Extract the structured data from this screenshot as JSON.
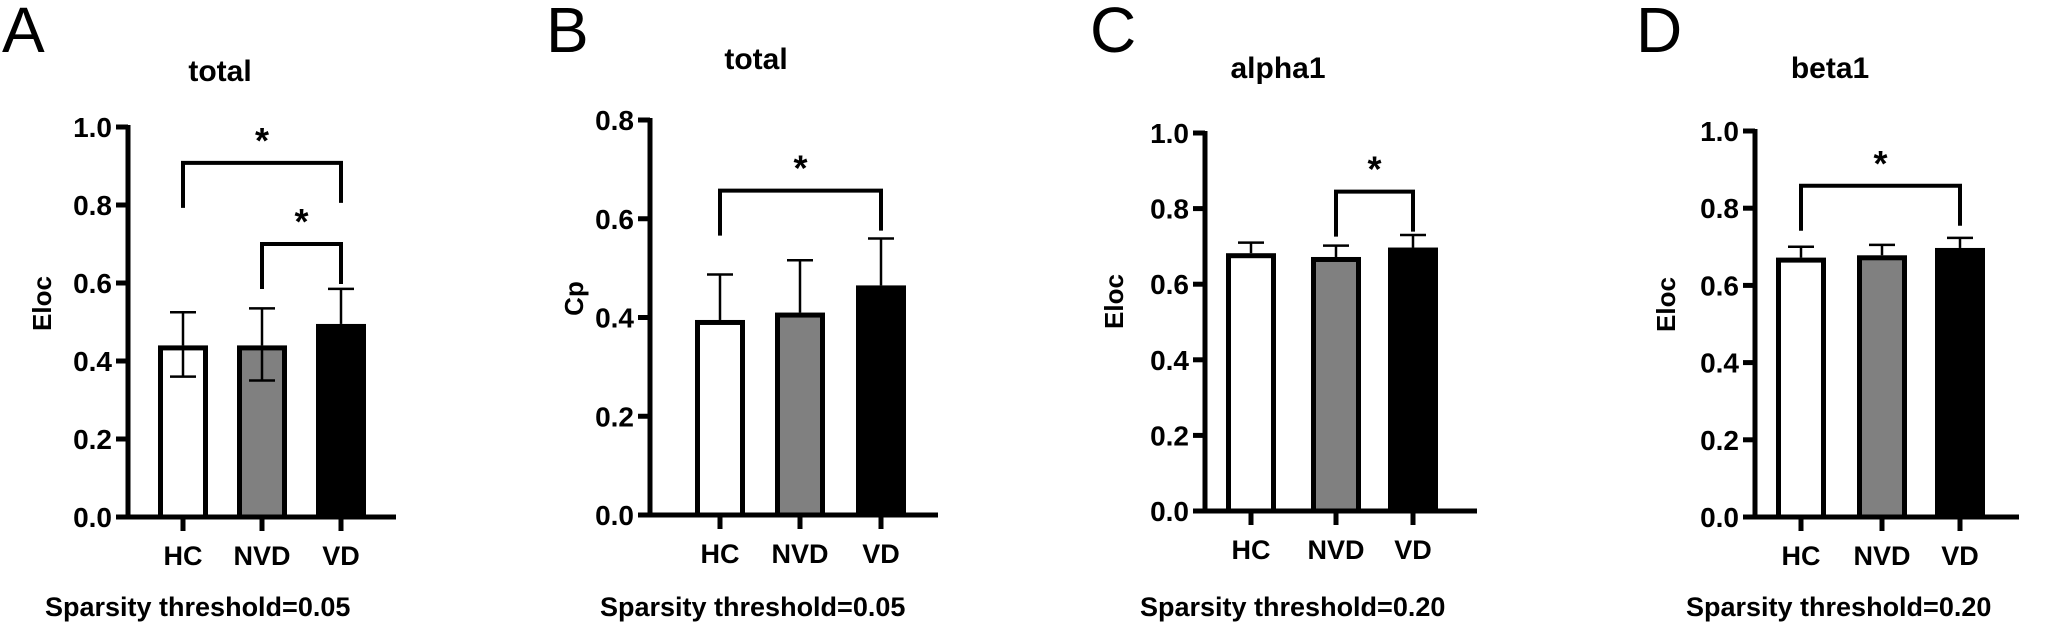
{
  "figure": {
    "panels": [
      {
        "letter": "A",
        "title": "total",
        "ylabel": "Eloc",
        "footer": "Sparsity threshold=0.05"
      },
      {
        "letter": "B",
        "title": "total",
        "ylabel": "Cp",
        "footer": "Sparsity threshold=0.05"
      },
      {
        "letter": "C",
        "title": "alpha1",
        "ylabel": "Eloc",
        "footer": "Sparsity threshold=0.20"
      },
      {
        "letter": "D",
        "title": "beta1",
        "ylabel": "Eloc",
        "footer": "Sparsity threshold=0.20"
      }
    ],
    "colors": {
      "HC": "#ffffff",
      "NVD": "#808080",
      "VD": "#000000",
      "outline": "#000000"
    }
  },
  "chart_data": [
    {
      "type": "bar",
      "panel": "A",
      "title": "total",
      "xlabel": "Sparsity threshold=0.05",
      "ylabel": "Eloc",
      "categories": [
        "HC",
        "NVD",
        "VD"
      ],
      "values": [
        0.44,
        0.44,
        0.495
      ],
      "error_lower": [
        0.36,
        0.35,
        null
      ],
      "error_upper": [
        0.525,
        0.535,
        0.585
      ],
      "ylim": [
        0,
        1.0
      ],
      "yticks": [
        "0.0",
        "0.2",
        "0.4",
        "0.6",
        "0.8",
        "1.0"
      ],
      "significance": [
        {
          "from": "HC",
          "to": "VD",
          "label": "*",
          "y": 0.908
        },
        {
          "from": "NVD",
          "to": "VD",
          "label": "*",
          "y": 0.7
        }
      ],
      "grid": false,
      "legend": null
    },
    {
      "type": "bar",
      "panel": "B",
      "title": "total",
      "xlabel": "Sparsity threshold=0.05",
      "ylabel": "Cp",
      "categories": [
        "HC",
        "NVD",
        "VD"
      ],
      "values": [
        0.395,
        0.41,
        0.465
      ],
      "error_lower": [
        null,
        null,
        null
      ],
      "error_upper": [
        0.487,
        0.516,
        0.56
      ],
      "ylim": [
        0,
        0.8
      ],
      "yticks": [
        "0.0",
        "0.2",
        "0.4",
        "0.6",
        "0.8"
      ],
      "significance": [
        {
          "from": "HC",
          "to": "VD",
          "label": "*",
          "y": 0.657
        }
      ],
      "grid": false,
      "legend": null
    },
    {
      "type": "bar",
      "panel": "C",
      "title": "alpha1",
      "xlabel": "Sparsity threshold=0.20",
      "ylabel": "Eloc",
      "categories": [
        "HC",
        "NVD",
        "VD"
      ],
      "values": [
        0.682,
        0.672,
        0.697
      ],
      "error_lower": [
        null,
        null,
        null
      ],
      "error_upper": [
        0.71,
        0.702,
        0.73
      ],
      "ylim": [
        0,
        1.0
      ],
      "yticks": [
        "0.0",
        "0.2",
        "0.4",
        "0.6",
        "0.8",
        "1.0"
      ],
      "significance": [
        {
          "from": "NVD",
          "to": "VD",
          "label": "*",
          "y": 0.845
        }
      ],
      "grid": false,
      "legend": null
    },
    {
      "type": "bar",
      "panel": "D",
      "title": "beta1",
      "xlabel": "Sparsity threshold=0.20",
      "ylabel": "Eloc",
      "categories": [
        "HC",
        "NVD",
        "VD"
      ],
      "values": [
        0.672,
        0.678,
        0.697
      ],
      "error_lower": [
        null,
        null,
        null
      ],
      "error_upper": [
        0.7,
        0.705,
        0.723
      ],
      "ylim": [
        0,
        1.0
      ],
      "yticks": [
        "0.0",
        "0.2",
        "0.4",
        "0.6",
        "0.8",
        "1.0"
      ],
      "significance": [
        {
          "from": "HC",
          "to": "VD",
          "label": "*",
          "y": 0.858
        }
      ],
      "grid": false,
      "legend": null
    }
  ]
}
